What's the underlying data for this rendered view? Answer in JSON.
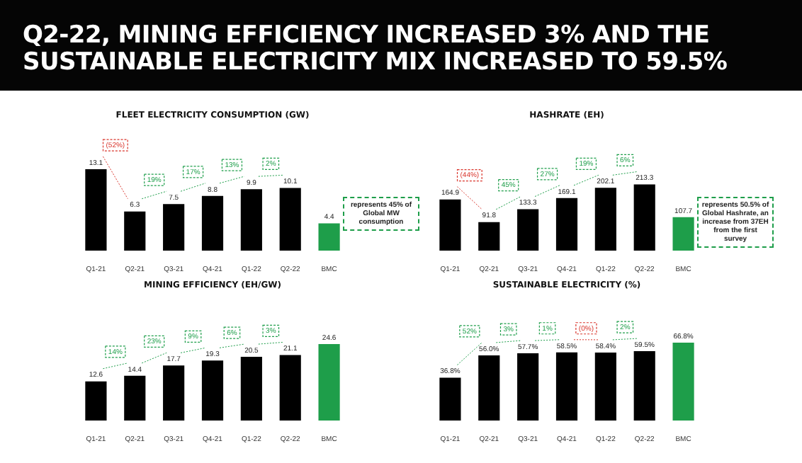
{
  "chart_data": [
    {
      "type": "other",
      "title": "Q2-22, MINING EFFICIENCY INCREASED 3% AND THE SUSTAINABLE ELECTRICITY MIX INCREASED TO 59.5%"
    },
    {
      "type": "bar",
      "title": "FLEET ELECTRICITY CONSUMPTION (GW)",
      "categories": [
        "Q1-21",
        "Q2-21",
        "Q3-21",
        "Q4-21",
        "Q1-22",
        "Q2-22",
        "BMC"
      ],
      "values": [
        13.1,
        6.3,
        7.5,
        8.8,
        9.9,
        10.1,
        4.4
      ],
      "colors": [
        "#000000",
        "#000000",
        "#000000",
        "#000000",
        "#000000",
        "#000000",
        "#1e9e4a"
      ],
      "data_labels": true,
      "annotations": [
        "(52%)",
        "19%",
        "17%",
        "13%",
        "2%",
        "represents 45% of Global MW consumption"
      ]
    },
    {
      "type": "bar",
      "title": "HASHRATE (EH)",
      "categories": [
        "Q1-21",
        "Q2-21",
        "Q3-21",
        "Q4-21",
        "Q1-22",
        "Q2-22",
        "BMC"
      ],
      "values": [
        164.9,
        91.8,
        133.3,
        169.1,
        202.1,
        213.3,
        107.7
      ],
      "colors": [
        "#000000",
        "#000000",
        "#000000",
        "#000000",
        "#000000",
        "#000000",
        "#1e9e4a"
      ],
      "data_labels": true,
      "annotations": [
        "(44%)",
        "45%",
        "27%",
        "19%",
        "6%",
        "represents 50.5% of Global Hashrate, an increase from 37EH from the first survey"
      ]
    },
    {
      "type": "bar",
      "title": "MINING EFFICIENCY (EH/GW)",
      "categories": [
        "Q1-21",
        "Q2-21",
        "Q3-21",
        "Q4-21",
        "Q1-22",
        "Q2-22",
        "BMC"
      ],
      "values": [
        12.6,
        14.4,
        17.7,
        19.3,
        20.5,
        21.1,
        24.6
      ],
      "colors": [
        "#000000",
        "#000000",
        "#000000",
        "#000000",
        "#000000",
        "#000000",
        "#1e9e4a"
      ],
      "data_labels": true,
      "annotations": [
        "14%",
        "23%",
        "9%",
        "6%",
        "3%"
      ]
    },
    {
      "type": "bar",
      "title": "SUSTAINABLE ELECTRICITY (%)",
      "categories": [
        "Q1-21",
        "Q2-21",
        "Q3-21",
        "Q4-21",
        "Q1-22",
        "Q2-22",
        "BMC"
      ],
      "values": [
        36.8,
        56.0,
        57.7,
        58.5,
        58.4,
        59.5,
        66.8
      ],
      "value_labels": [
        "36.8%",
        "56.0%",
        "57.7%",
        "58.5%",
        "58.4%",
        "59.5%",
        "66.8%"
      ],
      "colors": [
        "#000000",
        "#000000",
        "#000000",
        "#000000",
        "#000000",
        "#000000",
        "#1e9e4a"
      ],
      "annotations": [
        "52%",
        "3%",
        "1%",
        "(0%)",
        "2%"
      ]
    }
  ]
}
